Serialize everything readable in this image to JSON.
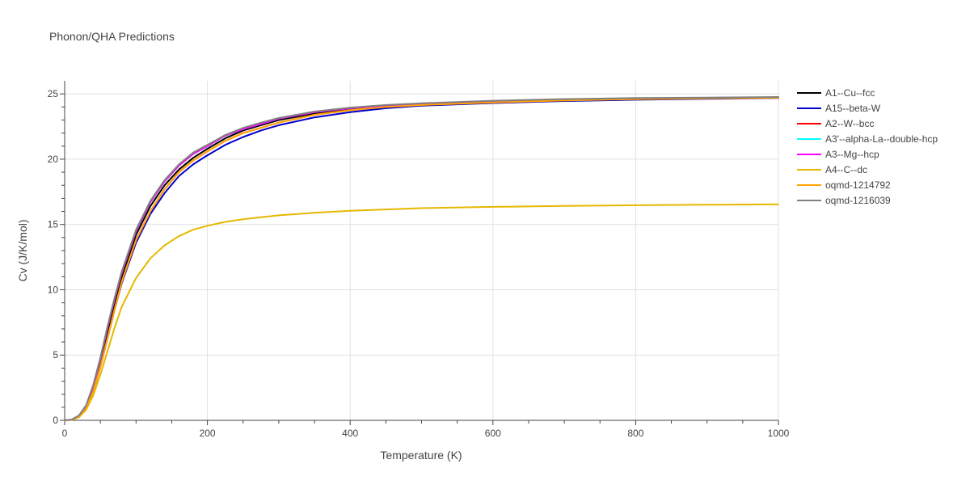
{
  "chart_data": {
    "type": "line",
    "title": "Phonon/QHA Predictions",
    "xlabel": "Temperature (K)",
    "ylabel": "Cv (J/K/mol)",
    "xlim": [
      0,
      1000
    ],
    "ylim": [
      0,
      26
    ],
    "xticks": [
      0,
      200,
      400,
      600,
      800,
      1000
    ],
    "yticks": [
      0,
      5,
      10,
      15,
      20,
      25
    ],
    "grid": true,
    "legend_position": "right",
    "series": [
      {
        "name": "A1--Cu--fcc",
        "color": "#000000",
        "x": [
          0,
          10,
          20,
          30,
          40,
          50,
          60,
          70,
          80,
          100,
          120,
          140,
          160,
          180,
          200,
          225,
          250,
          275,
          300,
          350,
          400,
          450,
          500,
          600,
          700,
          800,
          900,
          1000
        ],
        "y": [
          0,
          0.05,
          0.3,
          1.0,
          2.4,
          4.4,
          6.8,
          9.0,
          11.0,
          14.2,
          16.4,
          18.0,
          19.2,
          20.1,
          20.8,
          21.6,
          22.2,
          22.6,
          23.0,
          23.5,
          23.8,
          24.05,
          24.2,
          24.4,
          24.55,
          24.62,
          24.68,
          24.72
        ]
      },
      {
        "name": "A15--beta-W",
        "color": "#0000cc",
        "x": [
          0,
          10,
          20,
          30,
          40,
          50,
          60,
          70,
          80,
          100,
          120,
          140,
          160,
          180,
          200,
          225,
          250,
          275,
          300,
          350,
          400,
          450,
          500,
          600,
          700,
          800,
          900,
          1000
        ],
        "y": [
          0,
          0.04,
          0.25,
          0.9,
          2.2,
          4.1,
          6.3,
          8.5,
          10.5,
          13.6,
          15.8,
          17.4,
          18.7,
          19.6,
          20.3,
          21.1,
          21.7,
          22.2,
          22.6,
          23.2,
          23.6,
          23.9,
          24.1,
          24.3,
          24.45,
          24.55,
          24.62,
          24.68
        ]
      },
      {
        "name": "A2--W--bcc",
        "color": "#ff0000",
        "x": [
          0,
          10,
          20,
          30,
          40,
          50,
          60,
          70,
          80,
          100,
          120,
          140,
          160,
          180,
          200,
          225,
          250,
          275,
          300,
          350,
          400,
          450,
          500,
          600,
          700,
          800,
          900,
          1000
        ],
        "y": [
          0,
          0.04,
          0.25,
          0.9,
          2.2,
          4.1,
          6.3,
          8.5,
          10.6,
          13.8,
          16.0,
          17.7,
          19.0,
          19.9,
          20.6,
          21.4,
          22.0,
          22.4,
          22.8,
          23.4,
          23.75,
          24.0,
          24.15,
          24.35,
          24.5,
          24.6,
          24.66,
          24.7
        ]
      },
      {
        "name": "A3'--alpha-La--double-hcp",
        "color": "#00ffff",
        "x": [
          0,
          10,
          20,
          30,
          40,
          50,
          60,
          70,
          80,
          100,
          120,
          140,
          160,
          180,
          200,
          225,
          250,
          275,
          300,
          350,
          400,
          450,
          500,
          600,
          700,
          800,
          900,
          1000
        ],
        "y": [
          0,
          0.05,
          0.35,
          1.1,
          2.6,
          4.7,
          7.1,
          9.3,
          11.3,
          14.5,
          16.7,
          18.3,
          19.5,
          20.4,
          21.0,
          21.8,
          22.3,
          22.7,
          23.1,
          23.6,
          23.9,
          24.1,
          24.25,
          24.45,
          24.58,
          24.65,
          24.7,
          24.74
        ]
      },
      {
        "name": "A3--Mg--hcp",
        "color": "#ff00ff",
        "x": [
          0,
          10,
          20,
          30,
          40,
          50,
          60,
          70,
          80,
          100,
          120,
          140,
          160,
          180,
          200,
          225,
          250,
          275,
          300,
          350,
          400,
          450,
          500,
          600,
          700,
          800,
          900,
          1000
        ],
        "y": [
          0,
          0.05,
          0.35,
          1.1,
          2.6,
          4.7,
          7.1,
          9.3,
          11.3,
          14.5,
          16.7,
          18.3,
          19.5,
          20.4,
          21.0,
          21.8,
          22.3,
          22.7,
          23.1,
          23.6,
          23.9,
          24.1,
          24.25,
          24.45,
          24.58,
          24.65,
          24.7,
          24.74
        ]
      },
      {
        "name": "A4--C--dc",
        "color": "#e6b800",
        "x": [
          0,
          10,
          20,
          30,
          40,
          50,
          60,
          70,
          80,
          100,
          120,
          140,
          160,
          180,
          200,
          225,
          250,
          275,
          300,
          350,
          400,
          450,
          500,
          600,
          700,
          800,
          900,
          1000
        ],
        "y": [
          0,
          0.04,
          0.25,
          0.8,
          1.9,
          3.5,
          5.3,
          7.1,
          8.7,
          10.9,
          12.4,
          13.4,
          14.1,
          14.6,
          14.9,
          15.2,
          15.4,
          15.55,
          15.7,
          15.9,
          16.05,
          16.15,
          16.25,
          16.35,
          16.42,
          16.47,
          16.51,
          16.54
        ]
      },
      {
        "name": "oqmd-1214792",
        "color": "#ffa500",
        "x": [
          0,
          10,
          20,
          30,
          40,
          50,
          60,
          70,
          80,
          100,
          120,
          140,
          160,
          180,
          200,
          225,
          250,
          275,
          300,
          350,
          400,
          450,
          500,
          600,
          700,
          800,
          900,
          1000
        ],
        "y": [
          0,
          0.04,
          0.25,
          0.9,
          2.2,
          4.1,
          6.3,
          8.5,
          10.6,
          13.8,
          16.0,
          17.7,
          19.0,
          19.9,
          20.6,
          21.4,
          22.0,
          22.4,
          22.8,
          23.4,
          23.75,
          24.0,
          24.15,
          24.35,
          24.5,
          24.6,
          24.66,
          24.7
        ]
      },
      {
        "name": "oqmd-1216039",
        "color": "#808080",
        "x": [
          0,
          10,
          20,
          30,
          40,
          50,
          60,
          70,
          80,
          100,
          120,
          140,
          160,
          180,
          200,
          225,
          250,
          275,
          300,
          350,
          400,
          450,
          500,
          600,
          700,
          800,
          900,
          1000
        ],
        "y": [
          0,
          0.06,
          0.38,
          1.15,
          2.7,
          4.8,
          7.2,
          9.4,
          11.4,
          14.6,
          16.8,
          18.4,
          19.6,
          20.5,
          21.1,
          21.85,
          22.4,
          22.8,
          23.15,
          23.65,
          23.95,
          24.15,
          24.28,
          24.48,
          24.6,
          24.68,
          24.72,
          24.76
        ]
      }
    ]
  }
}
